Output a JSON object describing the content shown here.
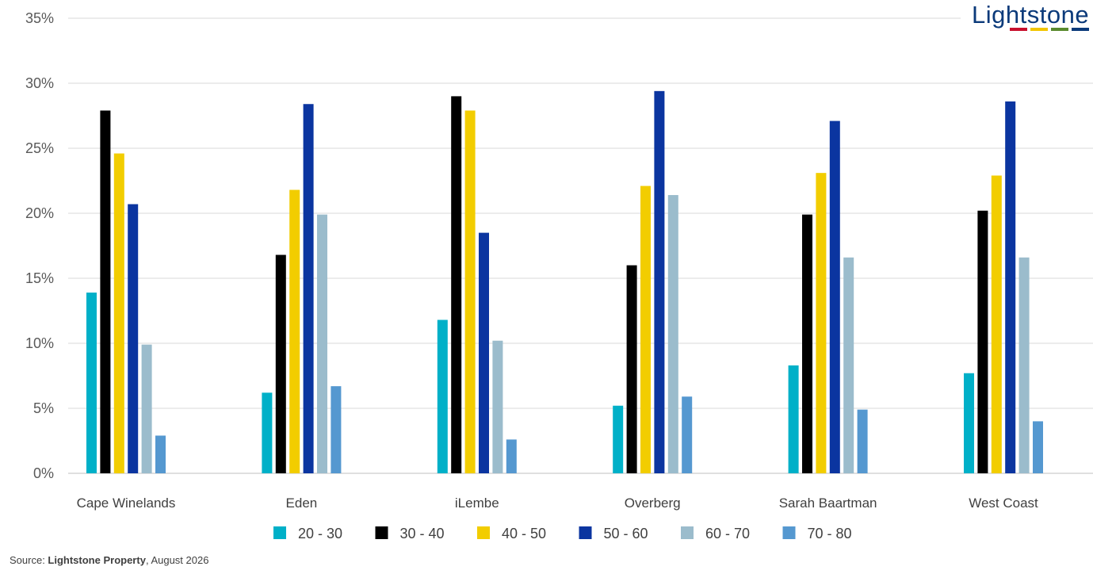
{
  "logo": {
    "text": "Lightstone",
    "stripe_colors": [
      "#c8102e",
      "#f2c500",
      "#5a8a2e",
      "#0b3a7a"
    ]
  },
  "source": {
    "prefix": "Source: ",
    "name": "Lightstone Property",
    "suffix": ", August 2026"
  },
  "chart_data": {
    "type": "bar",
    "title": "",
    "xlabel": "",
    "ylabel": "",
    "ylim": [
      0,
      35
    ],
    "yticks": [
      0,
      5,
      10,
      15,
      20,
      25,
      30,
      35
    ],
    "ytick_labels": [
      "0%",
      "5%",
      "10%",
      "15%",
      "20%",
      "25%",
      "30%",
      "35%"
    ],
    "grid": true,
    "legend_position": "bottom",
    "categories": [
      "Cape Winelands",
      "Eden",
      "iLembe",
      "Overberg",
      "Sarah Baartman",
      "West Coast"
    ],
    "series": [
      {
        "name": "20 - 30",
        "color": "#00b0c8",
        "values": [
          13.9,
          6.2,
          11.8,
          5.2,
          8.3,
          7.7
        ]
      },
      {
        "name": "30 - 40",
        "color": "#000000",
        "values": [
          27.9,
          16.8,
          29.0,
          16.0,
          19.9,
          20.2
        ]
      },
      {
        "name": "40 - 50",
        "color": "#f2cd00",
        "values": [
          24.6,
          21.8,
          27.9,
          22.1,
          23.1,
          22.9
        ]
      },
      {
        "name": "50 - 60",
        "color": "#0b35a0",
        "values": [
          20.7,
          28.4,
          18.5,
          29.4,
          27.1,
          28.6
        ]
      },
      {
        "name": "60 - 70",
        "color": "#9bbccc",
        "values": [
          9.9,
          19.9,
          10.2,
          21.4,
          16.6,
          16.6
        ]
      },
      {
        "name": "70 - 80",
        "color": "#5598d0",
        "values": [
          2.9,
          6.7,
          2.6,
          5.9,
          4.9,
          4.0
        ]
      }
    ]
  }
}
